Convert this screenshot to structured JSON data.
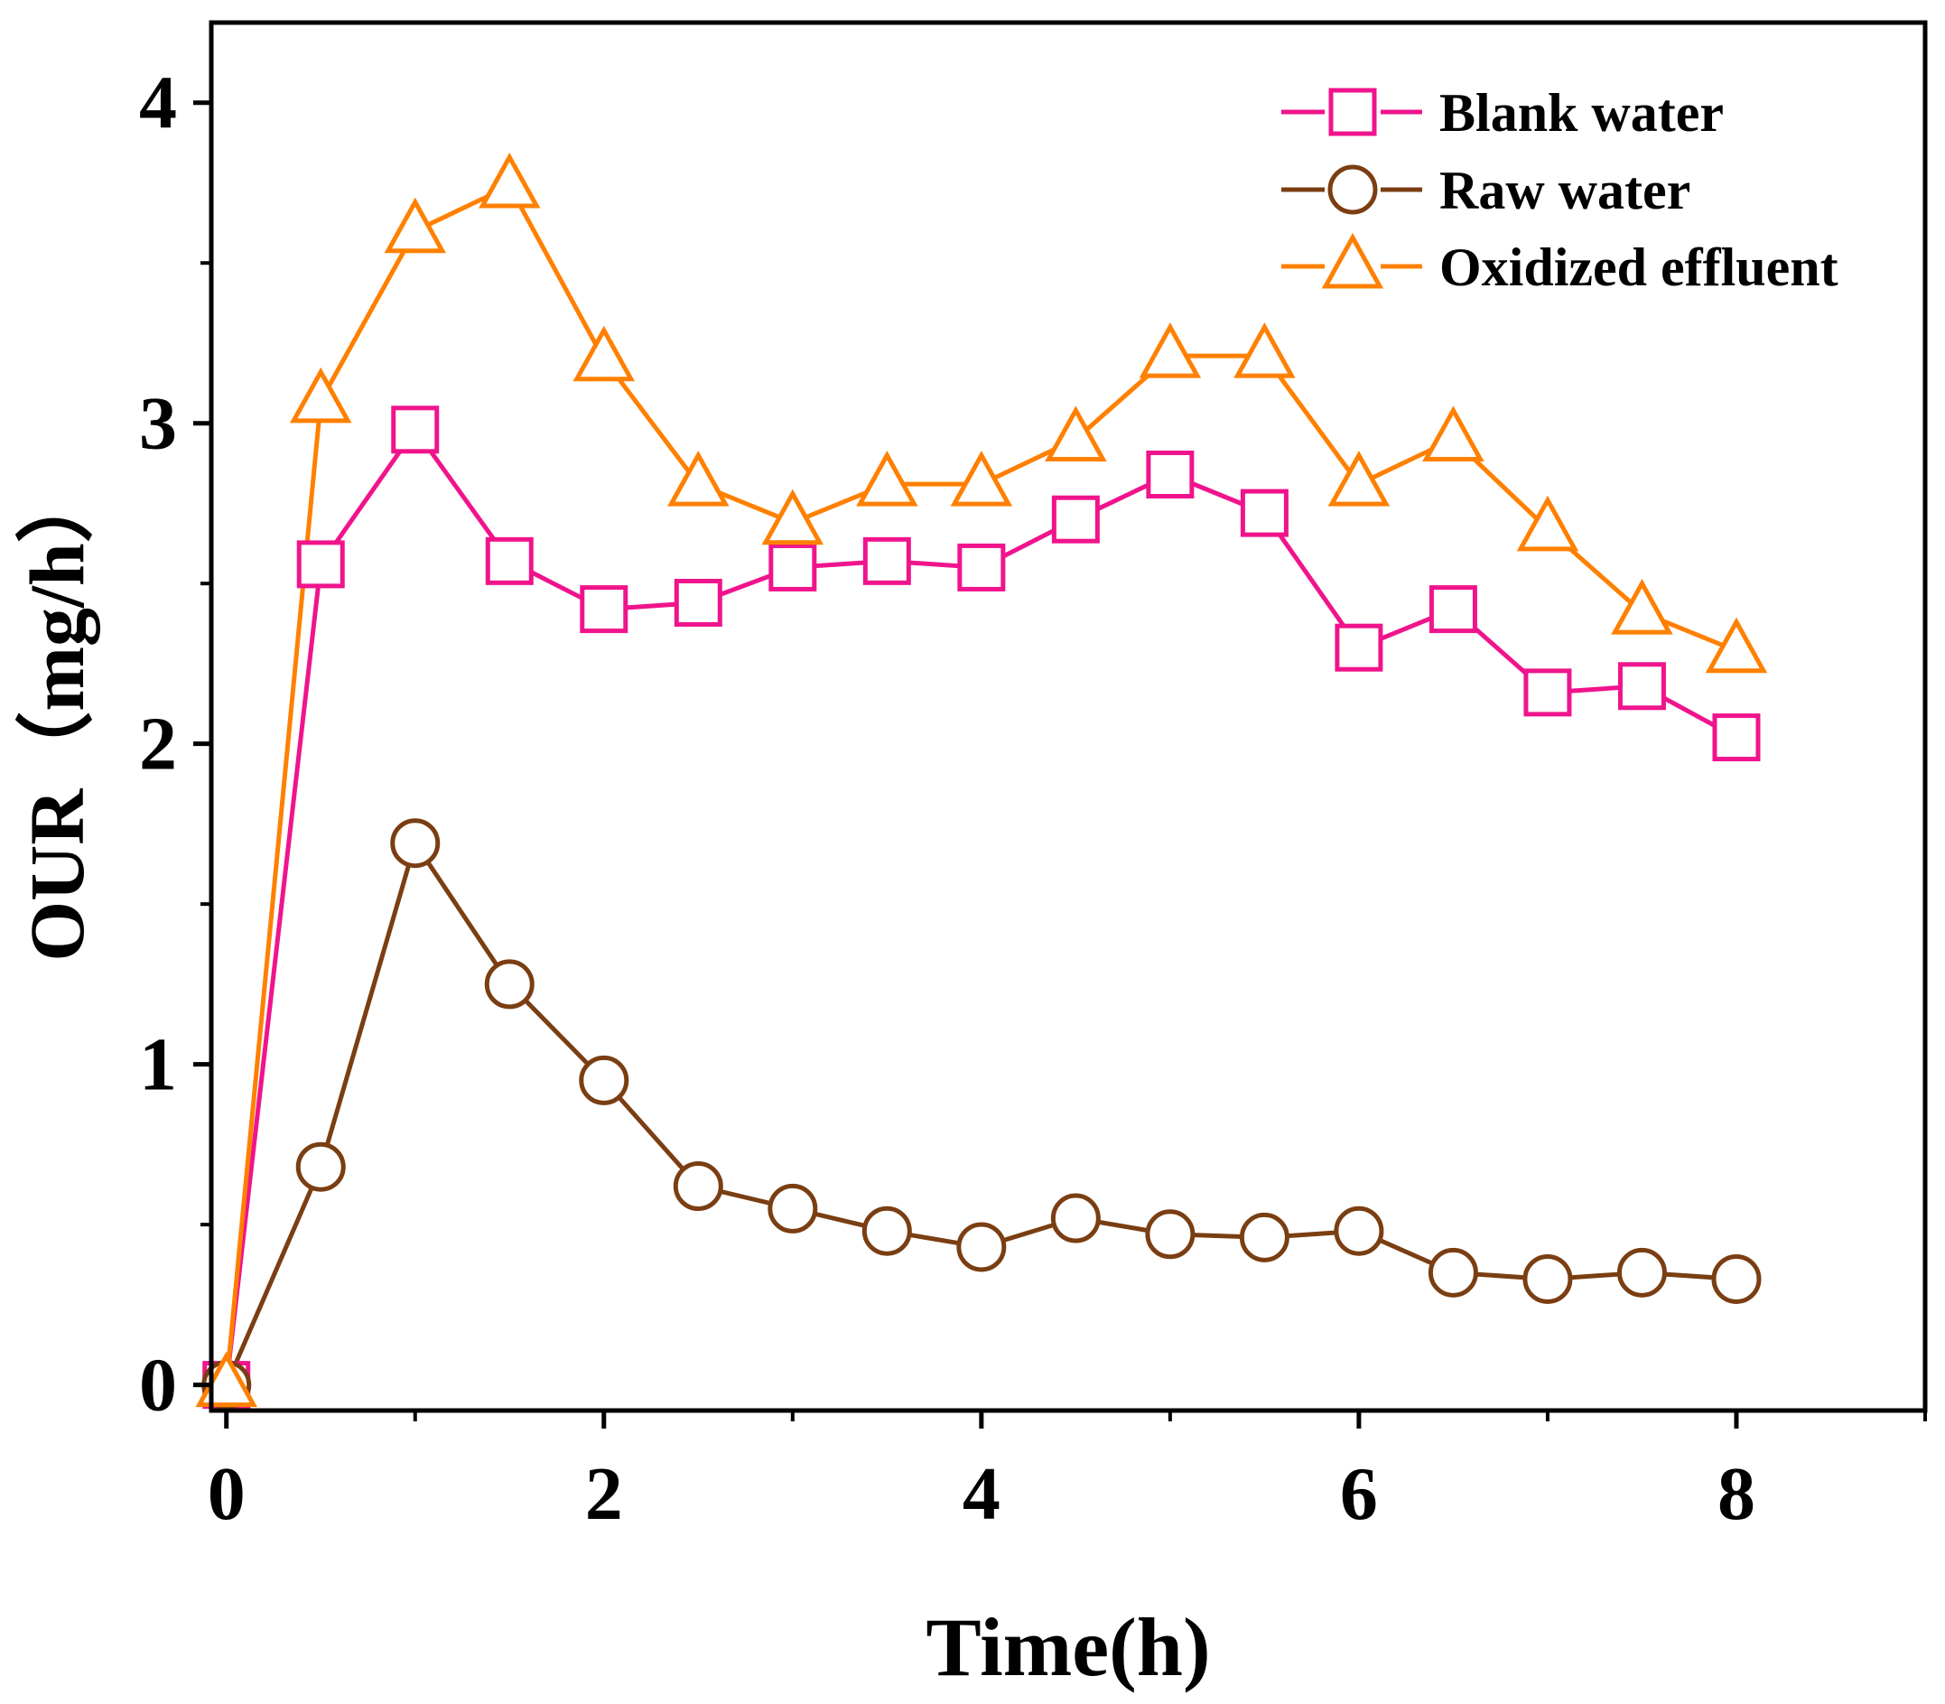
{
  "chart_data": {
    "type": "line",
    "title": "",
    "xlabel": "Time(h)",
    "ylabel": "OUR（mg/h）",
    "xlim": [
      -0.08,
      9
    ],
    "ylim": [
      -0.08,
      4.25
    ],
    "xticks": [
      0,
      2,
      4,
      6,
      8
    ],
    "xtick_labels": [
      "0",
      "2",
      "4",
      "6",
      "8"
    ],
    "yticks": [
      0,
      1,
      2,
      3,
      4
    ],
    "ytick_labels": [
      "0",
      "1",
      "2",
      "3",
      "4"
    ],
    "grid": false,
    "legend_position": "top-right",
    "x": [
      0,
      0.5,
      1,
      1.5,
      2,
      2.5,
      3,
      3.5,
      4,
      4.5,
      5,
      5.5,
      6,
      6.5,
      7,
      7.5,
      8
    ],
    "series": [
      {
        "name": "Blank water",
        "marker": "square",
        "color": "#f0148c",
        "values": [
          0,
          2.56,
          2.98,
          2.57,
          2.42,
          2.44,
          2.55,
          2.57,
          2.55,
          2.7,
          2.84,
          2.72,
          2.3,
          2.42,
          2.16,
          2.18,
          2.02
        ]
      },
      {
        "name": "Raw water",
        "marker": "circle",
        "color": "#7a3e12",
        "values": [
          0,
          0.68,
          1.69,
          1.25,
          0.95,
          0.62,
          0.55,
          0.48,
          0.43,
          0.52,
          0.47,
          0.46,
          0.48,
          0.35,
          0.33,
          0.35,
          0.33
        ]
      },
      {
        "name": "Oxidized effluent",
        "marker": "triangle",
        "color": "#ff8000",
        "values": [
          0,
          3.07,
          3.6,
          3.74,
          3.2,
          2.81,
          2.69,
          2.81,
          2.81,
          2.95,
          3.21,
          3.21,
          2.81,
          2.95,
          2.67,
          2.41,
          2.29
        ]
      }
    ]
  }
}
